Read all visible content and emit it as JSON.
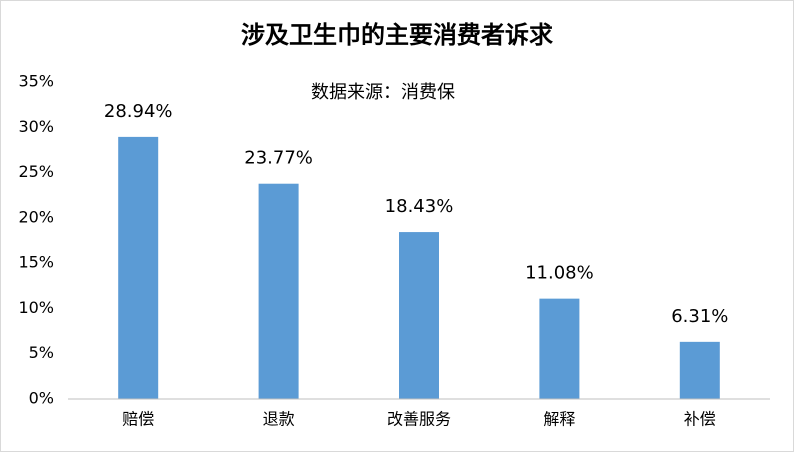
{
  "chart_data": {
    "type": "bar",
    "title": "涉及卫生巾的主要消费者诉求",
    "subtitle": "数据来源：消费保",
    "categories": [
      "赔偿",
      "退款",
      "改善服务",
      "解释",
      "补偿"
    ],
    "values": [
      28.94,
      23.77,
      18.43,
      11.08,
      6.31
    ],
    "value_labels": [
      "28.94%",
      "23.77%",
      "18.43%",
      "11.08%",
      "6.31%"
    ],
    "color": "#5b9bd5",
    "ylim": [
      0,
      35
    ],
    "yticks": [
      {
        "value": 0,
        "label": "0%"
      },
      {
        "value": 5,
        "label": "5%"
      },
      {
        "value": 10,
        "label": "10%"
      },
      {
        "value": 15,
        "label": "15%"
      },
      {
        "value": 20,
        "label": "20%"
      },
      {
        "value": 25,
        "label": "25%"
      },
      {
        "value": 30,
        "label": "30%"
      },
      {
        "value": 35,
        "label": "35%"
      }
    ],
    "grid": false
  }
}
